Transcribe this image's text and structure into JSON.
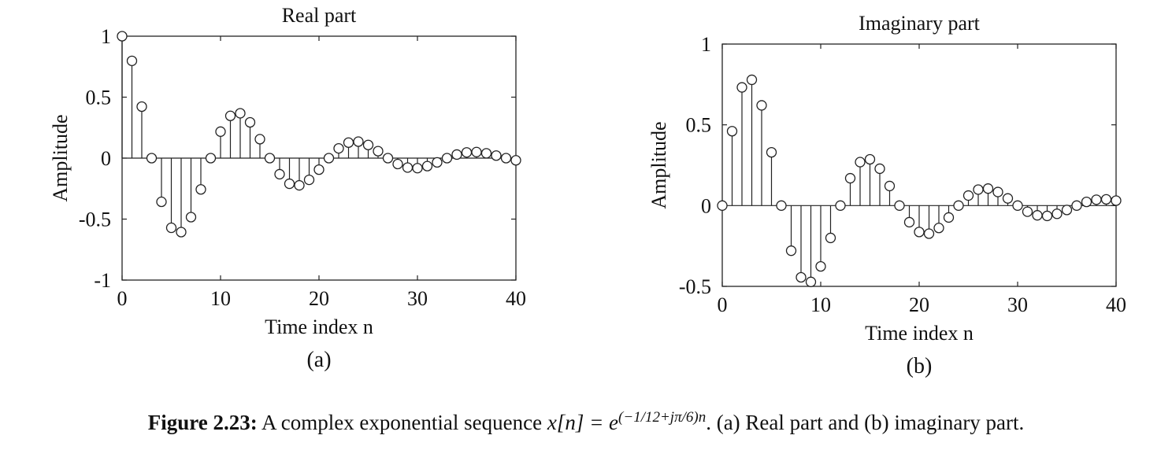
{
  "chart_data": [
    {
      "type": "stem",
      "title": "Real part",
      "xlabel": "Time index n",
      "ylabel": "Amplitude",
      "panel_label": "(a)",
      "xlim": [
        0,
        40
      ],
      "ylim": [
        -1,
        1
      ],
      "xticks": [
        0,
        10,
        20,
        30,
        40
      ],
      "yticks": [
        -1,
        -0.5,
        0,
        0.5,
        1
      ],
      "ytick_labels": [
        "-1",
        "-0.5",
        "0",
        "0.5",
        "1"
      ],
      "grid": false,
      "x": [
        0,
        1,
        2,
        3,
        4,
        5,
        6,
        7,
        8,
        9,
        10,
        11,
        12,
        13,
        14,
        15,
        16,
        17,
        18,
        19,
        20,
        21,
        22,
        23,
        24,
        25,
        26,
        27,
        28,
        29,
        30,
        31,
        32,
        33,
        34,
        35,
        36,
        37,
        38,
        39,
        40
      ],
      "values": [
        1.0,
        0.7977,
        0.4226,
        0.0,
        -0.3582,
        -0.5712,
        -0.6065,
        -0.4838,
        -0.2564,
        0.0,
        0.2173,
        0.3466,
        0.3679,
        0.2935,
        0.1555,
        0.0,
        -0.1318,
        -0.2102,
        -0.2231,
        -0.178,
        -0.0943,
        0.0,
        0.08,
        0.1275,
        0.1353,
        0.108,
        0.0572,
        0.0,
        -0.0485,
        -0.0773,
        -0.0821,
        -0.0655,
        -0.0347,
        0.0,
        0.0294,
        0.0469,
        0.0498,
        0.0397,
        0.021,
        0.0,
        -0.0178
      ]
    },
    {
      "type": "stem",
      "title": "Imaginary part",
      "xlabel": "Time index n",
      "ylabel": "Amplitude",
      "panel_label": "(b)",
      "xlim": [
        0,
        40
      ],
      "ylim": [
        -0.5,
        1
      ],
      "xticks": [
        0,
        10,
        20,
        30,
        40
      ],
      "yticks": [
        -0.5,
        0,
        0.5,
        1
      ],
      "ytick_labels": [
        "-0.5",
        "0",
        "0.5",
        "1"
      ],
      "grid": false,
      "x": [
        0,
        1,
        2,
        3,
        4,
        5,
        6,
        7,
        8,
        9,
        10,
        11,
        12,
        13,
        14,
        15,
        16,
        17,
        18,
        19,
        20,
        21,
        22,
        23,
        24,
        25,
        26,
        27,
        28,
        29,
        30,
        31,
        32,
        33,
        34,
        35,
        36,
        37,
        38,
        39,
        40
      ],
      "values": [
        0.0,
        0.4606,
        0.7319,
        0.7788,
        0.6205,
        0.3298,
        0.0,
        -0.2793,
        -0.444,
        -0.4724,
        -0.3764,
        -0.2001,
        0.0,
        0.1694,
        0.2693,
        0.2865,
        0.2283,
        0.1213,
        0.0,
        -0.1028,
        -0.1633,
        -0.1738,
        -0.1385,
        -0.0736,
        0.0,
        0.0623,
        0.0991,
        0.1054,
        0.084,
        0.0446,
        0.0,
        -0.0378,
        -0.0601,
        -0.0639,
        -0.0509,
        -0.0271,
        0.0,
        0.0229,
        0.0365,
        0.0388,
        0.0309
      ]
    }
  ],
  "caption": {
    "label": "Figure 2.23:",
    "text_before": "A complex exponential sequence",
    "lhs": "x[n] = e",
    "exponent": "(−1/12+jπ/6)n",
    "text_after": ". (a) Real part and (b) imaginary part."
  }
}
